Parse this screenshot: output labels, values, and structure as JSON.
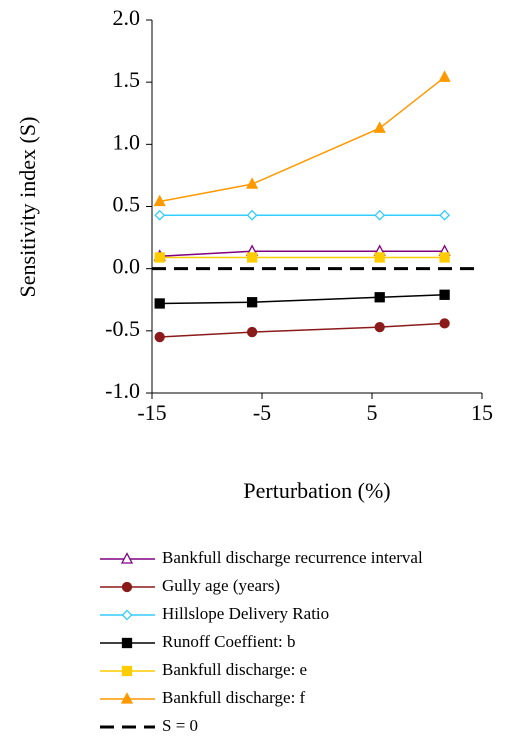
{
  "chart_data": {
    "type": "line",
    "xlabel": "Perturbation (%)",
    "ylabel": "Sensitivity index (S)",
    "x": [
      -14.3,
      -5.9,
      5.7,
      11.6
    ],
    "xlim": [
      -15,
      15
    ],
    "xticks": [
      -15,
      -5,
      5,
      15
    ],
    "ylim": [
      -1,
      2
    ],
    "yticks": [
      {
        "value": -1,
        "label": "-1.0"
      },
      -0.5,
      {
        "value": 0,
        "label": "0.0"
      },
      0.5,
      {
        "value": 1,
        "label": "1.0"
      },
      1.5,
      {
        "value": 2,
        "label": "2.0"
      }
    ],
    "series": [
      {
        "name": "Bankfull discharge recurrence interval",
        "color": "#800080",
        "marker": "triangle",
        "filled": false,
        "values": [
          0.1,
          0.14,
          0.14,
          0.14
        ]
      },
      {
        "name": "Gully age (years)",
        "color": "#8b1a1a",
        "marker": "circle",
        "filled": true,
        "values": [
          -0.55,
          -0.51,
          -0.47,
          -0.44
        ]
      },
      {
        "name": "Hillslope Delivery Ratio",
        "color": "#33ccff",
        "marker": "diamond",
        "filled": false,
        "values": [
          0.43,
          0.43,
          0.43,
          0.43
        ]
      },
      {
        "name": "Runoff Coeffient: b",
        "color": "#000000",
        "marker": "square",
        "filled": true,
        "values": [
          -0.28,
          -0.27,
          -0.23,
          -0.21
        ]
      },
      {
        "name": "Bankfull discharge: e",
        "color": "#ffcc00",
        "marker": "square",
        "filled": true,
        "values": [
          0.09,
          0.09,
          0.09,
          0.09
        ]
      },
      {
        "name": "Bankfull discharge: f",
        "color": "#ff9900",
        "marker": "triangle",
        "filled": true,
        "values": [
          0.54,
          0.68,
          1.13,
          1.54
        ]
      }
    ],
    "reference_line": {
      "name": "S = 0",
      "value": 0,
      "color": "#000000",
      "dashed": true
    },
    "legend": "bottom"
  }
}
